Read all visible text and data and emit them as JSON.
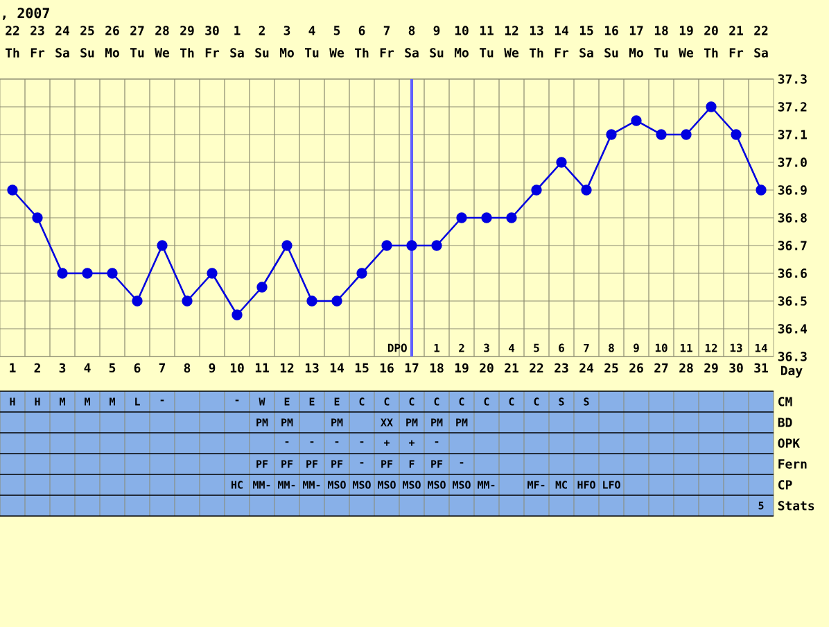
{
  "chart_data": [
    {
      "type": "line",
      "title": ", 2007",
      "xlabel": "Day",
      "categories": [
        "1",
        "2",
        "3",
        "4",
        "5",
        "6",
        "7",
        "8",
        "9",
        "10",
        "11",
        "12",
        "13",
        "14",
        "15",
        "16",
        "17",
        "18",
        "19",
        "20",
        "21",
        "22",
        "23",
        "24",
        "25",
        "26",
        "27",
        "28",
        "29",
        "30",
        "31"
      ],
      "values": [
        36.9,
        36.8,
        36.6,
        36.6,
        36.6,
        36.5,
        36.7,
        36.5,
        36.6,
        36.45,
        36.55,
        36.7,
        36.5,
        36.5,
        36.6,
        36.7,
        36.7,
        36.7,
        36.8,
        36.8,
        36.8,
        36.9,
        37.0,
        36.9,
        37.1,
        37.15,
        37.1,
        37.1,
        37.2,
        37.1,
        36.9
      ],
      "color": "#0000e0",
      "marker": "circle",
      "grid": true,
      "ylim": [
        36.3,
        37.3
      ],
      "yticks": [
        36.3,
        36.4,
        36.5,
        36.6,
        36.7,
        36.8,
        36.9,
        {
          "value": 37.0,
          "label": "37.0"
        },
        37.1,
        37.2,
        37.3
      ],
      "ref_lines": [
        {
          "axis": "x",
          "value": "17",
          "label": "DPO",
          "color": "#6060ff"
        }
      ],
      "annotations": [
        "22",
        "23",
        "24",
        "25",
        "26",
        "27",
        "28",
        "29",
        "30",
        "1",
        "2",
        "3",
        "4",
        "5",
        "6",
        "7",
        "8",
        "9",
        "10",
        "11",
        "12",
        "13",
        "14",
        "15",
        "16",
        "17",
        "18",
        "19",
        "20",
        "21",
        "22",
        "Th",
        "Fr",
        "Sa",
        "Su",
        "Mo",
        "Tu",
        "We",
        "Th",
        "Fr",
        "Sa",
        "Su",
        "Mo",
        "Tu",
        "We",
        "Th",
        "Fr",
        "Sa",
        "Su",
        "Mo",
        "Tu",
        "We",
        "Th",
        "Fr",
        "Sa",
        "Su",
        "Mo",
        "Tu",
        "We",
        "Th",
        "Fr",
        "Sa",
        "1",
        "2",
        "3",
        "4",
        "5",
        "6",
        "7",
        "8",
        "9",
        "10",
        "11",
        "12",
        "13",
        "14"
      ]
    },
    {
      "type": "other",
      "categories": [
        null,
        null,
        null,
        null,
        null,
        null,
        null,
        null,
        null,
        null,
        null,
        null,
        null,
        null,
        null,
        null,
        null,
        null,
        null,
        null,
        null,
        null,
        null,
        null,
        null,
        null,
        null,
        null,
        null,
        null,
        null
      ],
      "y_categories": [
        "CM",
        "BD",
        "OPK",
        "Fern",
        "CP",
        "Stats"
      ],
      "cell_labels": [
        [
          "H",
          "H",
          "M",
          "M",
          "M",
          "L",
          "-",
          null,
          null,
          "-",
          "W",
          "E",
          "E",
          "E",
          "C",
          "C",
          "C",
          "C",
          "C",
          "C",
          "C",
          "C",
          "S",
          "S",
          null,
          null,
          null,
          null,
          null,
          null,
          null
        ],
        [
          null,
          null,
          null,
          null,
          null,
          null,
          null,
          null,
          null,
          null,
          "PM",
          "PM",
          null,
          "PM",
          null,
          "XX",
          "PM",
          "PM",
          "PM",
          null,
          null,
          null,
          null,
          null,
          null,
          null,
          null,
          null,
          null,
          null,
          null
        ],
        [
          null,
          null,
          null,
          null,
          null,
          null,
          null,
          null,
          null,
          null,
          null,
          "-",
          "-",
          "-",
          "-",
          "+",
          "+",
          "-",
          null,
          null,
          null,
          null,
          null,
          null,
          null,
          null,
          null,
          null,
          null,
          null,
          null
        ],
        [
          null,
          null,
          null,
          null,
          null,
          null,
          null,
          null,
          null,
          null,
          "PF",
          "PF",
          "PF",
          "PF",
          "-",
          "PF",
          "F",
          "PF",
          "-",
          null,
          null,
          null,
          null,
          null,
          null,
          null,
          null,
          null,
          null,
          null,
          null
        ],
        [
          null,
          null,
          null,
          null,
          null,
          null,
          null,
          null,
          null,
          "HC",
          "MM-",
          "MM-",
          "MM-",
          "MSO",
          "MSO",
          "MSO",
          "MSO",
          "MSO",
          "MSO",
          "MM-",
          null,
          "MF-",
          "MC",
          "HFO",
          "LFO",
          null,
          null,
          null,
          null,
          null,
          null
        ],
        [
          null,
          null,
          null,
          null,
          null,
          null,
          null,
          null,
          null,
          null,
          null,
          null,
          null,
          null,
          null,
          null,
          null,
          null,
          null,
          null,
          null,
          null,
          null,
          null,
          null,
          null,
          null,
          null,
          null,
          null,
          "5"
        ]
      ]
    }
  ]
}
